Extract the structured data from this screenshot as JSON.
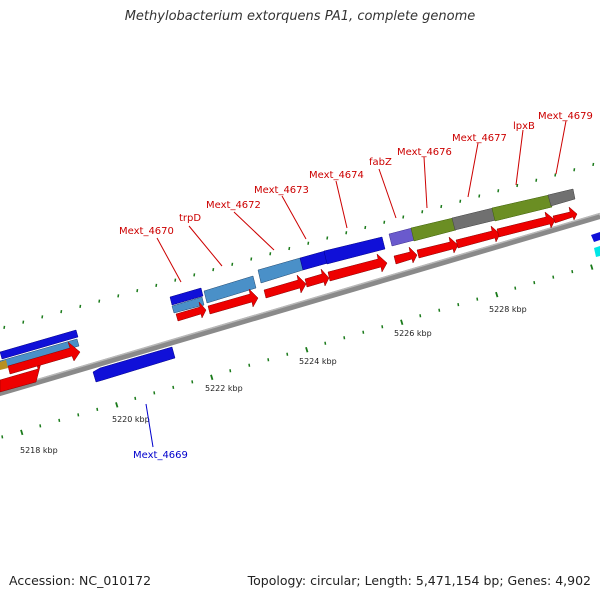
{
  "title": "Methylobacterium extorquens PA1, complete genome",
  "footer": {
    "accession": "Accession: NC_010172",
    "summary": "Topology: circular; Length: 5,471,154 bp; Genes: 4,902"
  },
  "colors": {
    "backbone": "#8c8c8c",
    "forward_strand_feature": "#0000e6",
    "cds_arrow": "#f00000",
    "rna_feature": "#00e0e0",
    "label_forward": "#cc0000",
    "label_reverse": "#0000cc",
    "major_tick": "#1a7a1a",
    "minor_tick": "#1a7a1a"
  },
  "scale": {
    "labels": [
      "5218 kbp",
      "5220 kbp",
      "5222 kbp",
      "5224 kbp",
      "5226 kbp",
      "5228 kbp"
    ]
  },
  "gene_labels": [
    {
      "text": "Mext_4669",
      "strand": "reverse"
    },
    {
      "text": "Mext_4670",
      "strand": "forward"
    },
    {
      "text": "trpD",
      "strand": "forward"
    },
    {
      "text": "Mext_4672",
      "strand": "forward"
    },
    {
      "text": "Mext_4673",
      "strand": "forward"
    },
    {
      "text": "Mext_4674",
      "strand": "forward"
    },
    {
      "text": "fabZ",
      "strand": "forward"
    },
    {
      "text": "Mext_4676",
      "strand": "forward"
    },
    {
      "text": "Mext_4677",
      "strand": "forward"
    },
    {
      "text": "lpxB",
      "strand": "forward"
    },
    {
      "text": "Mext_4679",
      "strand": "forward"
    }
  ]
}
